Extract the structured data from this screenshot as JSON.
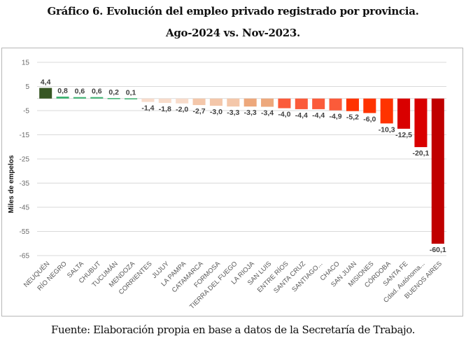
{
  "header": {
    "title_line1": "Gráfico 6. Evolución del empleo privado registrado por provincia.",
    "title_line2": "Ago-2024 vs. Nov-2023."
  },
  "footer": {
    "source": "Fuente: Elaboración propia en base a datos de la Secretaría de Trabajo."
  },
  "chart_data": {
    "type": "bar",
    "title": "Gráfico 6. Evolución del empleo privado registrado por provincia. Ago-2024 vs. Nov-2023.",
    "xlabel": "",
    "ylabel": "Miles de empelos",
    "ylim": [
      -65,
      15
    ],
    "yticks": [
      15,
      5,
      -5,
      -15,
      -25,
      -35,
      -45,
      -55,
      -65
    ],
    "ytick_labels": [
      "15",
      "5",
      "-5",
      "-15",
      "-25",
      "-35",
      "-45",
      "-55",
      "-65"
    ],
    "grid": true,
    "legend": "none",
    "categories": [
      "NEUQUÉN",
      "RÍO NEGRO",
      "SALTA",
      "CHUBUT",
      "TUCUMÁN",
      "MENDOZA",
      "CORRIENTES",
      "JUJUY",
      "LA PAMPA",
      "CATAMARCA",
      "FORMOSA",
      "TIERRA DEL FUEGO",
      "LA RIOJA",
      "SAN LUIS",
      "ENTRE RÍOS",
      "SANTA CRUZ",
      "SANTIAGO...",
      "CHACO",
      "SAN JUAN",
      "MISIONES",
      "CÓRDOBA",
      "SANTA FE",
      "Cdad. Autónoma...",
      "BUENOS AIRES"
    ],
    "values": [
      4.4,
      0.8,
      0.6,
      0.6,
      0.2,
      0.1,
      -1.4,
      -1.8,
      -2.0,
      -2.7,
      -3.0,
      -3.3,
      -3.3,
      -3.4,
      -4.0,
      -4.4,
      -4.4,
      -4.9,
      -5.2,
      -6.0,
      -10.3,
      -12.5,
      -20.1,
      -60.1
    ],
    "value_labels": [
      "4,4",
      "0,8",
      "0,6",
      "0,6",
      "0,2",
      "0,1",
      "-1,4",
      "-1,8",
      "-2,0",
      "-2,7",
      "-3,0",
      "-3,3",
      "-3,3",
      "-3,4",
      "-4,0",
      "-4,4",
      "-4,4",
      "-4,9",
      "-5,2",
      "-6,0",
      "-10,3",
      "-12,5",
      "-20,1",
      "-60,1"
    ],
    "colors": [
      "#375623",
      "#3cb371",
      "#3cb371",
      "#3cb371",
      "#3cb371",
      "#3cb371",
      "#f8dccb",
      "#f8dccb",
      "#f8dccb",
      "#f4c7aa",
      "#f4c7aa",
      "#f4c7aa",
      "#eda87c",
      "#eda87c",
      "#fb5b3a",
      "#fb5b3a",
      "#fb5b3a",
      "#fb5b3a",
      "#ff3300",
      "#ff3300",
      "#ff3300",
      "#d90000",
      "#d90000",
      "#c00000"
    ]
  }
}
